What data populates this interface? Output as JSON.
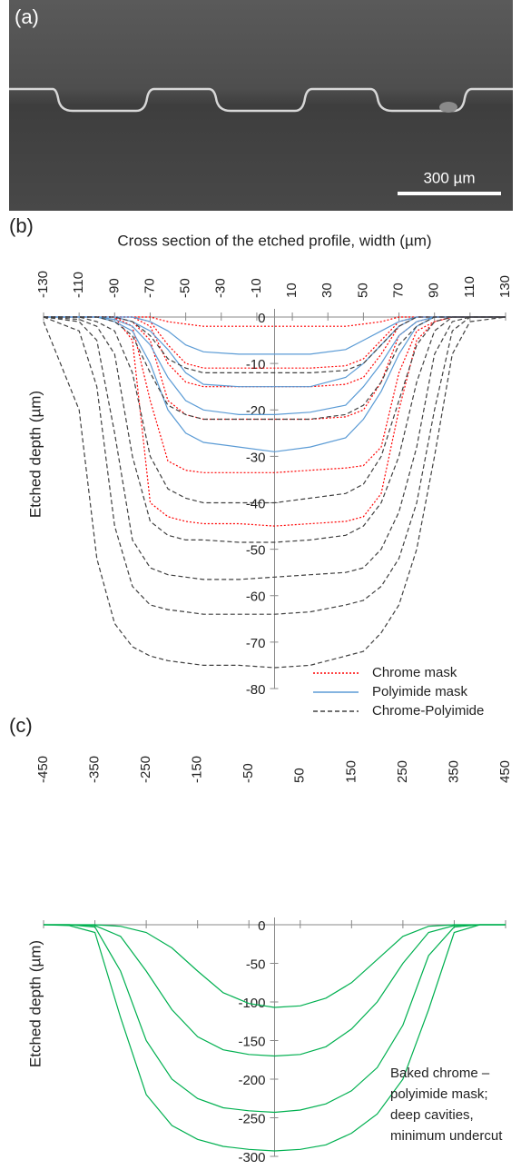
{
  "panel_a": {
    "label": "(a)",
    "scale_bar": "300 µm"
  },
  "chart_data": [
    {
      "type": "line",
      "label": "(b)",
      "title": "Cross section of the etched profile, width (µm)",
      "ylabel": "Etched depth (µm)",
      "xlim": [
        -130,
        130
      ],
      "ylim": [
        -80,
        0
      ],
      "xticks": [
        -130,
        -110,
        -90,
        -70,
        -50,
        -30,
        -10,
        10,
        30,
        50,
        70,
        90,
        110,
        130
      ],
      "yticks": [
        0,
        -10,
        -20,
        -30,
        -40,
        -50,
        -60,
        -70,
        -80
      ],
      "legend": "lower right",
      "series": [
        {
          "name": "Chrome mask",
          "color": "#ff0000",
          "line_style": "dotted",
          "x": [
            -130,
            -110,
            -100,
            -90,
            -80,
            -70,
            -60,
            -50,
            -40,
            -20,
            0,
            20,
            40,
            50,
            60,
            70,
            80,
            90,
            100,
            110,
            130
          ],
          "curves": [
            [
              0,
              0,
              0,
              0,
              0,
              0,
              -1,
              -1.5,
              -2,
              -2,
              -2,
              -2,
              -2,
              -1.5,
              -1,
              0,
              0,
              0,
              0,
              0,
              0
            ],
            [
              0,
              0,
              0,
              0,
              0,
              -1,
              -6,
              -10,
              -11,
              -11,
              -11,
              -11,
              -10.5,
              -9,
              -5,
              -1,
              0,
              0,
              0,
              0,
              0
            ],
            [
              0,
              0,
              0,
              0,
              0,
              -2,
              -10,
              -14,
              -15,
              -15,
              -15,
              -15,
              -14.5,
              -13,
              -8,
              -2,
              0,
              0,
              0,
              0,
              0
            ],
            [
              0,
              0,
              0,
              0,
              -1,
              -5,
              -18,
              -21,
              -22,
              -22,
              -22,
              -22,
              -21.5,
              -20,
              -14,
              -4,
              -1,
              0,
              0,
              0,
              0
            ],
            [
              0,
              0,
              0,
              0,
              -2,
              -18,
              -31,
              -33,
              -33.5,
              -33.5,
              -33.5,
              -33,
              -32.5,
              -32,
              -28,
              -12,
              -3,
              -1,
              0,
              0,
              0
            ],
            [
              0,
              0,
              0,
              0,
              -5,
              -40,
              -43,
              -44,
              -44.5,
              -44.5,
              -45,
              -44.5,
              -44,
              -43,
              -38,
              -20,
              -5,
              -1,
              0,
              0,
              0
            ]
          ]
        },
        {
          "name": "Polyimide mask",
          "color": "#5b9bd5",
          "line_style": "solid",
          "x": [
            -130,
            -110,
            -100,
            -90,
            -80,
            -70,
            -60,
            -50,
            -40,
            -20,
            0,
            20,
            40,
            50,
            60,
            70,
            80,
            90,
            100,
            110,
            130
          ],
          "curves": [
            [
              0,
              0,
              0,
              0,
              0,
              -1,
              -3,
              -6,
              -7.5,
              -8,
              -8,
              -8,
              -7,
              -5,
              -3,
              -1,
              0,
              0,
              0,
              0,
              0
            ],
            [
              0,
              0,
              0,
              0,
              -1,
              -3,
              -7,
              -12,
              -14.5,
              -15,
              -15,
              -15,
              -13,
              -10,
              -6,
              -2,
              0,
              0,
              0,
              0,
              0
            ],
            [
              0,
              0,
              0,
              -0.5,
              -2,
              -6,
              -13,
              -18,
              -20,
              -21,
              -21,
              -20.5,
              -19,
              -15,
              -10,
              -4,
              -1,
              0,
              0,
              0,
              0
            ],
            [
              0,
              0,
              0,
              -1,
              -3,
              -10,
              -20,
              -25,
              -27,
              -28,
              -29,
              -28,
              -26,
              -22,
              -16,
              -8,
              -2,
              0,
              0,
              0,
              0
            ]
          ]
        },
        {
          "name": "Chrome-Polyimide",
          "color": "#404040",
          "line_style": "dashed",
          "x": [
            -130,
            -110,
            -100,
            -90,
            -80,
            -70,
            -60,
            -50,
            -40,
            -20,
            0,
            20,
            40,
            50,
            60,
            70,
            80,
            90,
            100,
            110,
            130
          ],
          "curves": [
            [
              0,
              0,
              0,
              0,
              -1,
              -4,
              -9,
              -11,
              -12,
              -12,
              -12,
              -12,
              -11.5,
              -10,
              -6,
              -2,
              0,
              0,
              0,
              0,
              0
            ],
            [
              0,
              0,
              0,
              -1,
              -4,
              -12,
              -19,
              -21,
              -22,
              -22,
              -22,
              -22,
              -21,
              -19,
              -14,
              -6,
              -2,
              0,
              0,
              0,
              0
            ],
            [
              0,
              0,
              -1,
              -3,
              -12,
              -30,
              -37,
              -39,
              -40,
              -40,
              -40,
              -39,
              -38,
              -36,
              -30,
              -18,
              -6,
              -1,
              0,
              0,
              0
            ],
            [
              0,
              -0.5,
              -2,
              -8,
              -30,
              -44,
              -47,
              -48,
              -48,
              -48.5,
              -48.5,
              -48,
              -47,
              -45,
              -40,
              -30,
              -14,
              -3,
              0,
              0,
              0
            ],
            [
              0,
              -1,
              -5,
              -25,
              -48,
              -54,
              -55.5,
              -56,
              -56.5,
              -56.5,
              -56,
              -55.5,
              -55,
              -54,
              -50,
              -42,
              -28,
              -8,
              -1,
              0,
              0
            ],
            [
              0,
              -3,
              -15,
              -45,
              -58,
              -62,
              -63,
              -63.5,
              -64,
              -64,
              -64,
              -63.5,
              -62,
              -61,
              -58,
              -52,
              -40,
              -20,
              -3,
              0,
              0
            ],
            [
              -1,
              -20,
              -52,
              -66,
              -71,
              -73,
              -74,
              -74.5,
              -75,
              -75,
              -75.5,
              -75,
              -73,
              -72,
              -68,
              -62,
              -50,
              -30,
              -8,
              -1,
              0
            ]
          ]
        }
      ]
    },
    {
      "type": "line",
      "label": "(c)",
      "ylabel": "Etched depth (µm)",
      "xlim": [
        -450,
        450
      ],
      "ylim": [
        -300,
        0
      ],
      "xticks": [
        -450,
        -350,
        -250,
        -150,
        -50,
        50,
        150,
        250,
        350,
        450
      ],
      "yticks": [
        0,
        -50,
        -100,
        -150,
        -200,
        -250,
        -300
      ],
      "annotation": [
        "Baked chrome –",
        "polyimide mask;",
        "deep cavities,",
        "minimum undercut"
      ],
      "series": [
        {
          "color": "#00b050",
          "line_style": "solid",
          "x": [
            -450,
            -400,
            -350,
            -300,
            -250,
            -200,
            -150,
            -100,
            -50,
            0,
            50,
            100,
            150,
            200,
            250,
            300,
            350,
            400,
            450
          ],
          "curves": [
            [
              0,
              0,
              0,
              -2,
              -10,
              -30,
              -60,
              -88,
              -102,
              -107,
              -105,
              -95,
              -75,
              -45,
              -15,
              -2,
              0,
              0,
              0
            ],
            [
              0,
              0,
              -1,
              -15,
              -60,
              -110,
              -145,
              -162,
              -168,
              -170,
              -168,
              -158,
              -135,
              -100,
              -50,
              -10,
              -1,
              0,
              0
            ],
            [
              0,
              0,
              -3,
              -60,
              -150,
              -200,
              -225,
              -237,
              -241,
              -243,
              -240,
              -232,
              -215,
              -185,
              -130,
              -40,
              -3,
              0,
              0
            ],
            [
              0,
              -1,
              -10,
              -120,
              -220,
              -260,
              -278,
              -287,
              -291,
              -293,
              -291,
              -285,
              -270,
              -245,
              -200,
              -110,
              -10,
              0,
              0
            ]
          ]
        }
      ]
    }
  ]
}
